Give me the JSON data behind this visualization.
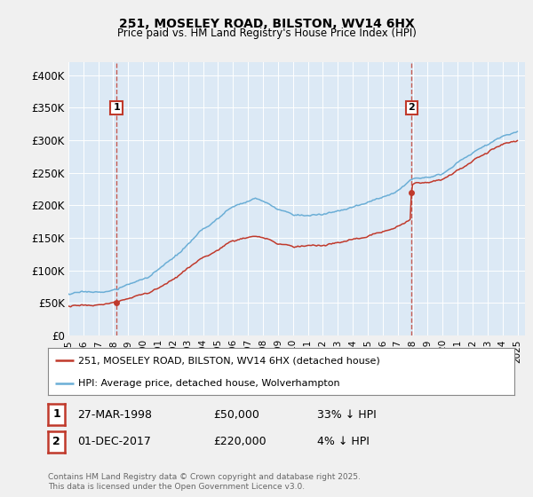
{
  "title1": "251, MOSELEY ROAD, BILSTON, WV14 6HX",
  "title2": "Price paid vs. HM Land Registry's House Price Index (HPI)",
  "ylim": [
    0,
    420000
  ],
  "yticks": [
    0,
    50000,
    100000,
    150000,
    200000,
    250000,
    300000,
    350000,
    400000
  ],
  "ytick_labels": [
    "£0",
    "£50K",
    "£100K",
    "£150K",
    "£200K",
    "£250K",
    "£300K",
    "£350K",
    "£400K"
  ],
  "hpi_color": "#6baed6",
  "price_color": "#c0392b",
  "marker1_date": 1998.22,
  "marker1_price": 50000,
  "marker1_label": "1",
  "marker2_date": 2017.92,
  "marker2_price": 220000,
  "marker2_label": "2",
  "legend_entry1": "251, MOSELEY ROAD, BILSTON, WV14 6HX (detached house)",
  "legend_entry2": "HPI: Average price, detached house, Wolverhampton",
  "table_row1": [
    "1",
    "27-MAR-1998",
    "£50,000",
    "33% ↓ HPI"
  ],
  "table_row2": [
    "2",
    "01-DEC-2017",
    "£220,000",
    "4% ↓ HPI"
  ],
  "footnote": "Contains HM Land Registry data © Crown copyright and database right 2025.\nThis data is licensed under the Open Government Licence v3.0.",
  "bg_color": "#f0f0f0",
  "plot_bg_color": "#dce9f5",
  "plot_fg_color": "#ffffff"
}
